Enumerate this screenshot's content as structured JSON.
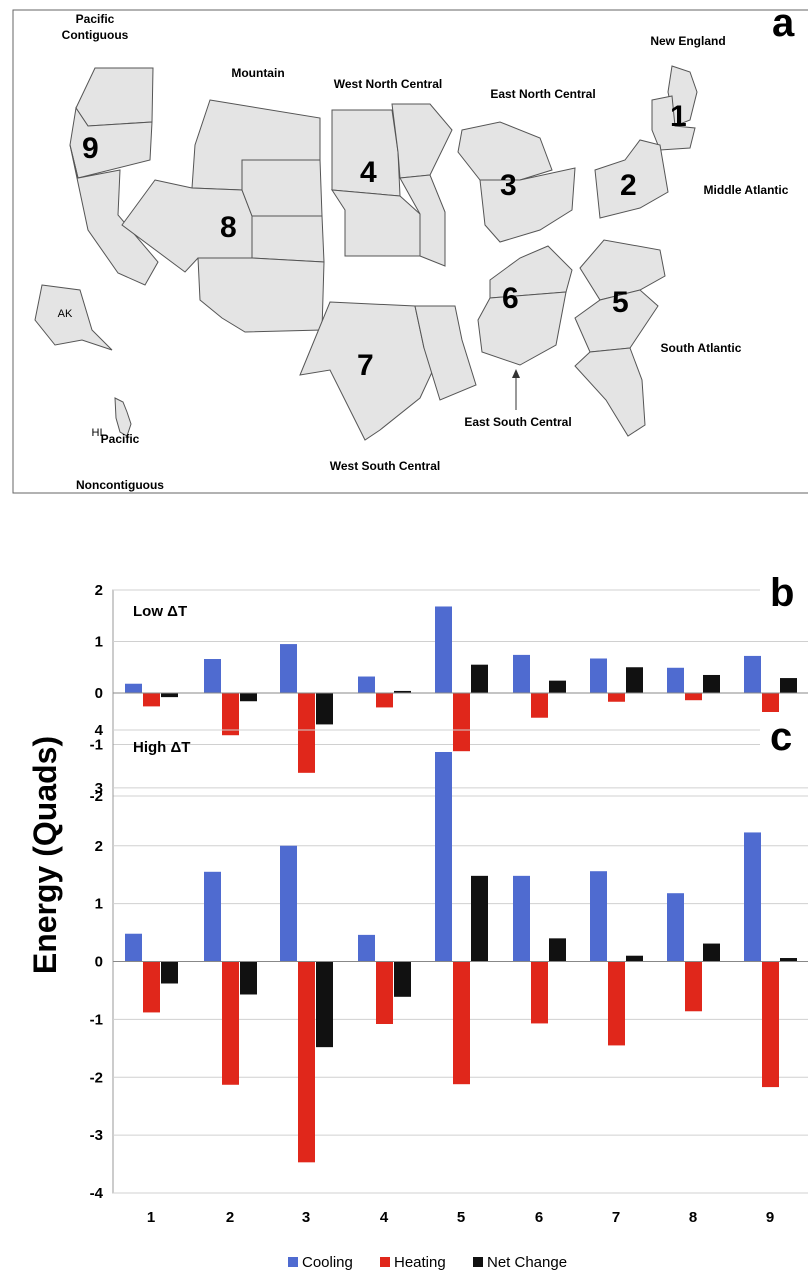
{
  "map": {
    "panel_label": "a",
    "region_labels": {
      "pacific_contiguous_1": "Pacific",
      "pacific_contiguous_2": "Contiguous",
      "mountain": "Mountain",
      "west_north_central": "West North Central",
      "east_north_central": "East North Central",
      "new_england": "New England",
      "middle_atlantic": "Middle Atlantic",
      "south_atlantic": "South Atlantic",
      "east_south_central": "East South Central",
      "west_south_central": "West South Central",
      "pacific_noncontiguous_1": "Pacific",
      "pacific_noncontiguous_2": "Noncontiguous",
      "ak": "AK",
      "hi": "HI"
    },
    "region_numbers": [
      "1",
      "2",
      "3",
      "4",
      "5",
      "6",
      "7",
      "8",
      "9"
    ],
    "colors": {
      "fill": "#e4e4e4",
      "stroke": "#555555"
    }
  },
  "chart_data": [
    {
      "type": "bar",
      "panel_label": "b",
      "annotation": "Low ΔT",
      "categories": [
        "1",
        "2",
        "3",
        "4",
        "5",
        "6",
        "7",
        "8",
        "9"
      ],
      "ylim": [
        -2,
        2
      ],
      "yticks": [
        "2",
        "1",
        "0",
        "-1",
        "-2"
      ],
      "series": [
        {
          "name": "Cooling",
          "values": [
            0.18,
            0.66,
            0.95,
            0.32,
            1.68,
            0.74,
            0.67,
            0.49,
            0.72
          ]
        },
        {
          "name": "Heating",
          "values": [
            -0.26,
            -0.82,
            -1.55,
            -0.28,
            -1.13,
            -0.48,
            -0.17,
            -0.14,
            -0.42
          ]
        },
        {
          "name": "Net Change",
          "values": [
            -0.08,
            -0.16,
            -0.61,
            0.04,
            0.55,
            0.24,
            0.5,
            0.35,
            0.29
          ]
        }
      ]
    },
    {
      "type": "bar",
      "panel_label": "c",
      "annotation": "High ΔT",
      "categories": [
        "1",
        "2",
        "3",
        "4",
        "5",
        "6",
        "7",
        "8",
        "9"
      ],
      "ylim": [
        -4,
        4
      ],
      "yticks": [
        "4",
        "3",
        "2",
        "1",
        "0",
        "-1",
        "-2",
        "-3",
        "-4"
      ],
      "series": [
        {
          "name": "Cooling",
          "values": [
            0.48,
            1.55,
            2.0,
            0.46,
            3.62,
            1.48,
            1.56,
            1.18,
            2.23
          ]
        },
        {
          "name": "Heating",
          "values": [
            -0.88,
            -2.13,
            -3.47,
            -1.08,
            -2.12,
            -1.07,
            -1.45,
            -0.86,
            -2.17
          ]
        },
        {
          "name": "Net Change",
          "values": [
            -0.38,
            -0.57,
            -1.48,
            -0.61,
            1.48,
            0.4,
            0.1,
            0.31,
            0.06
          ]
        }
      ]
    }
  ],
  "ylabel": "Energy (Quads)",
  "legend": [
    "Cooling",
    "Heating",
    "Net Change"
  ],
  "colors": {
    "Cooling": "#4f6bd0",
    "Heating": "#e0271b",
    "Net Change": "#111111"
  }
}
